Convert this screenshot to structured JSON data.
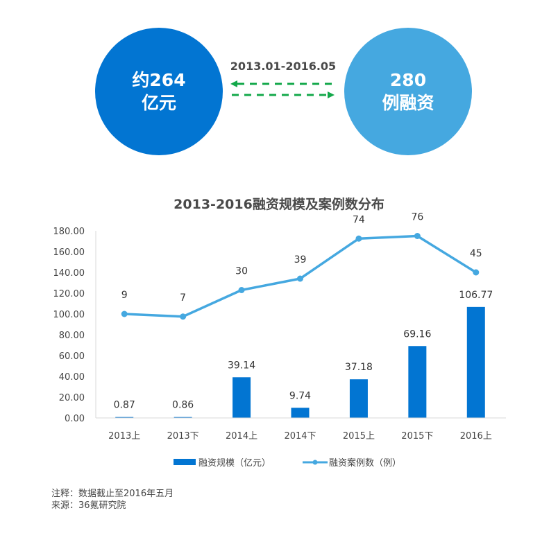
{
  "summary": {
    "left_circle": {
      "line1": "约264",
      "line2": "亿元",
      "color": "#0275d2"
    },
    "right_circle": {
      "line1": "280",
      "line2": "例融资",
      "color": "#45a8e0"
    },
    "period": "2013.01-2016.05",
    "arrow_color": "#13a84a"
  },
  "chart_data": {
    "type": "bar+line",
    "title": "2013-2016融资规模及案例数分布",
    "categories": [
      "2013上",
      "2013下",
      "2014上",
      "2014下",
      "2015上",
      "2015下",
      "2016上"
    ],
    "series": [
      {
        "name": "融资规模（亿元）",
        "type": "bar",
        "color": "#0275d2",
        "values": [
          0.87,
          0.86,
          39.14,
          9.74,
          37.18,
          69.16,
          106.77
        ],
        "labels": [
          "0.87",
          "0.86",
          "39.14",
          "9.74",
          "37.18",
          "69.16",
          "106.77"
        ]
      },
      {
        "name": "融资案例数（例）",
        "type": "line",
        "color": "#45a8e0",
        "values": [
          9,
          7,
          30,
          39,
          74,
          76,
          45
        ],
        "plotted_y": [
          100,
          97.5,
          123,
          134,
          172.5,
          175,
          140
        ],
        "labels": [
          "9",
          "7",
          "30",
          "39",
          "74",
          "76",
          "45"
        ]
      }
    ],
    "yticks": [
      "0.00",
      "20.00",
      "40.00",
      "60.00",
      "80.00",
      "100.00",
      "120.00",
      "140.00",
      "160.00",
      "180.00"
    ],
    "ylim": [
      0,
      180
    ],
    "xlabel": "",
    "ylabel": "",
    "grid": false,
    "legend_position": "bottom"
  },
  "legend": {
    "bar_label": "融资规模（亿元）",
    "line_label": "融资案例数（例）"
  },
  "footnote": {
    "note": "注释：数据截止至2016年五月",
    "source": "来源：36氪研究院"
  }
}
